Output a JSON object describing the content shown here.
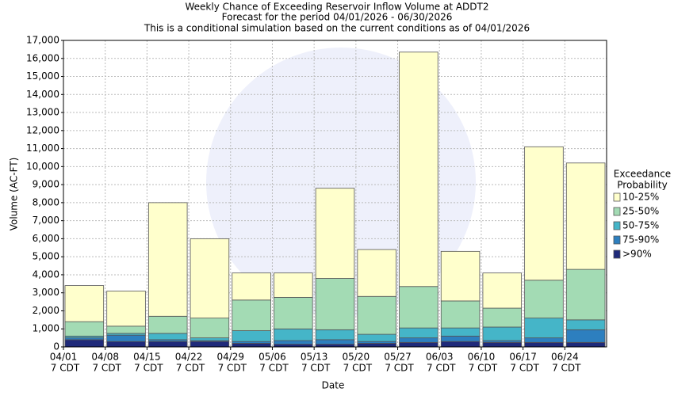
{
  "chart_data": {
    "type": "stacked-bar",
    "title": "Weekly Chance of Exceeding Reservoir Inflow Volume at ADDT2",
    "subtitle": "Forecast for the period 04/01/2026 - 06/30/2026",
    "note": "This is a conditional simulation based on the current conditions as of 04/01/2026",
    "x_label": "Date",
    "y_label": "Volume (AC-FT)",
    "categories": [
      "04/01",
      "04/08",
      "04/15",
      "04/22",
      "04/29",
      "05/06",
      "05/13",
      "05/20",
      "05/27",
      "06/03",
      "06/10",
      "06/17",
      "06/24"
    ],
    "category_sublabel": "7 CDT",
    "legend_title": [
      "Exceedance",
      "Probability"
    ],
    "series": [
      {
        "name": ">90%",
        "color": "#1f2a7a",
        "values": [
          400,
          300,
          300,
          300,
          200,
          150,
          150,
          200,
          250,
          300,
          250,
          250,
          250
        ]
      },
      {
        "name": "75-90%",
        "color": "#2d7fbf",
        "values": [
          100,
          350,
          100,
          50,
          100,
          200,
          250,
          100,
          250,
          300,
          100,
          250,
          700
        ]
      },
      {
        "name": "50-75%",
        "color": "#45b5c8",
        "values": [
          100,
          100,
          350,
          150,
          600,
          650,
          550,
          400,
          550,
          450,
          750,
          1100,
          550
        ]
      },
      {
        "name": "25-50%",
        "color": "#a3dbb4",
        "values": [
          800,
          400,
          950,
          1100,
          1700,
          1750,
          2850,
          2100,
          2300,
          1500,
          1050,
          2100,
          2800
        ]
      },
      {
        "name": "10-25%",
        "color": "#ffffcc",
        "values": [
          2000,
          1950,
          6300,
          4400,
          1500,
          1350,
          5000,
          2600,
          13000,
          2750,
          1950,
          7400,
          5900
        ]
      }
    ],
    "ylim": [
      0,
      17000
    ],
    "yticks": [
      0,
      {
        "value": 1000,
        "label": "1,000"
      },
      {
        "value": 2000,
        "label": "2,000"
      },
      {
        "value": 3000,
        "label": "3,000"
      },
      {
        "value": 4000,
        "label": "4,000"
      },
      {
        "value": 5000,
        "label": "5,000"
      },
      {
        "value": 6000,
        "label": "6,000"
      },
      {
        "value": 7000,
        "label": "7,000"
      },
      {
        "value": 8000,
        "label": "8,000"
      },
      {
        "value": 9000,
        "label": "9,000"
      },
      {
        "value": 10000,
        "label": "10,000"
      },
      {
        "value": 11000,
        "label": "11,000"
      },
      {
        "value": 12000,
        "label": "12,000"
      },
      {
        "value": 13000,
        "label": "13,000"
      },
      {
        "value": 14000,
        "label": "14,000"
      },
      {
        "value": 15000,
        "label": "15,000"
      },
      {
        "value": 16000,
        "label": "16,000"
      },
      {
        "value": 17000,
        "label": "17,000"
      }
    ],
    "grid": true,
    "legend_position": "right"
  }
}
